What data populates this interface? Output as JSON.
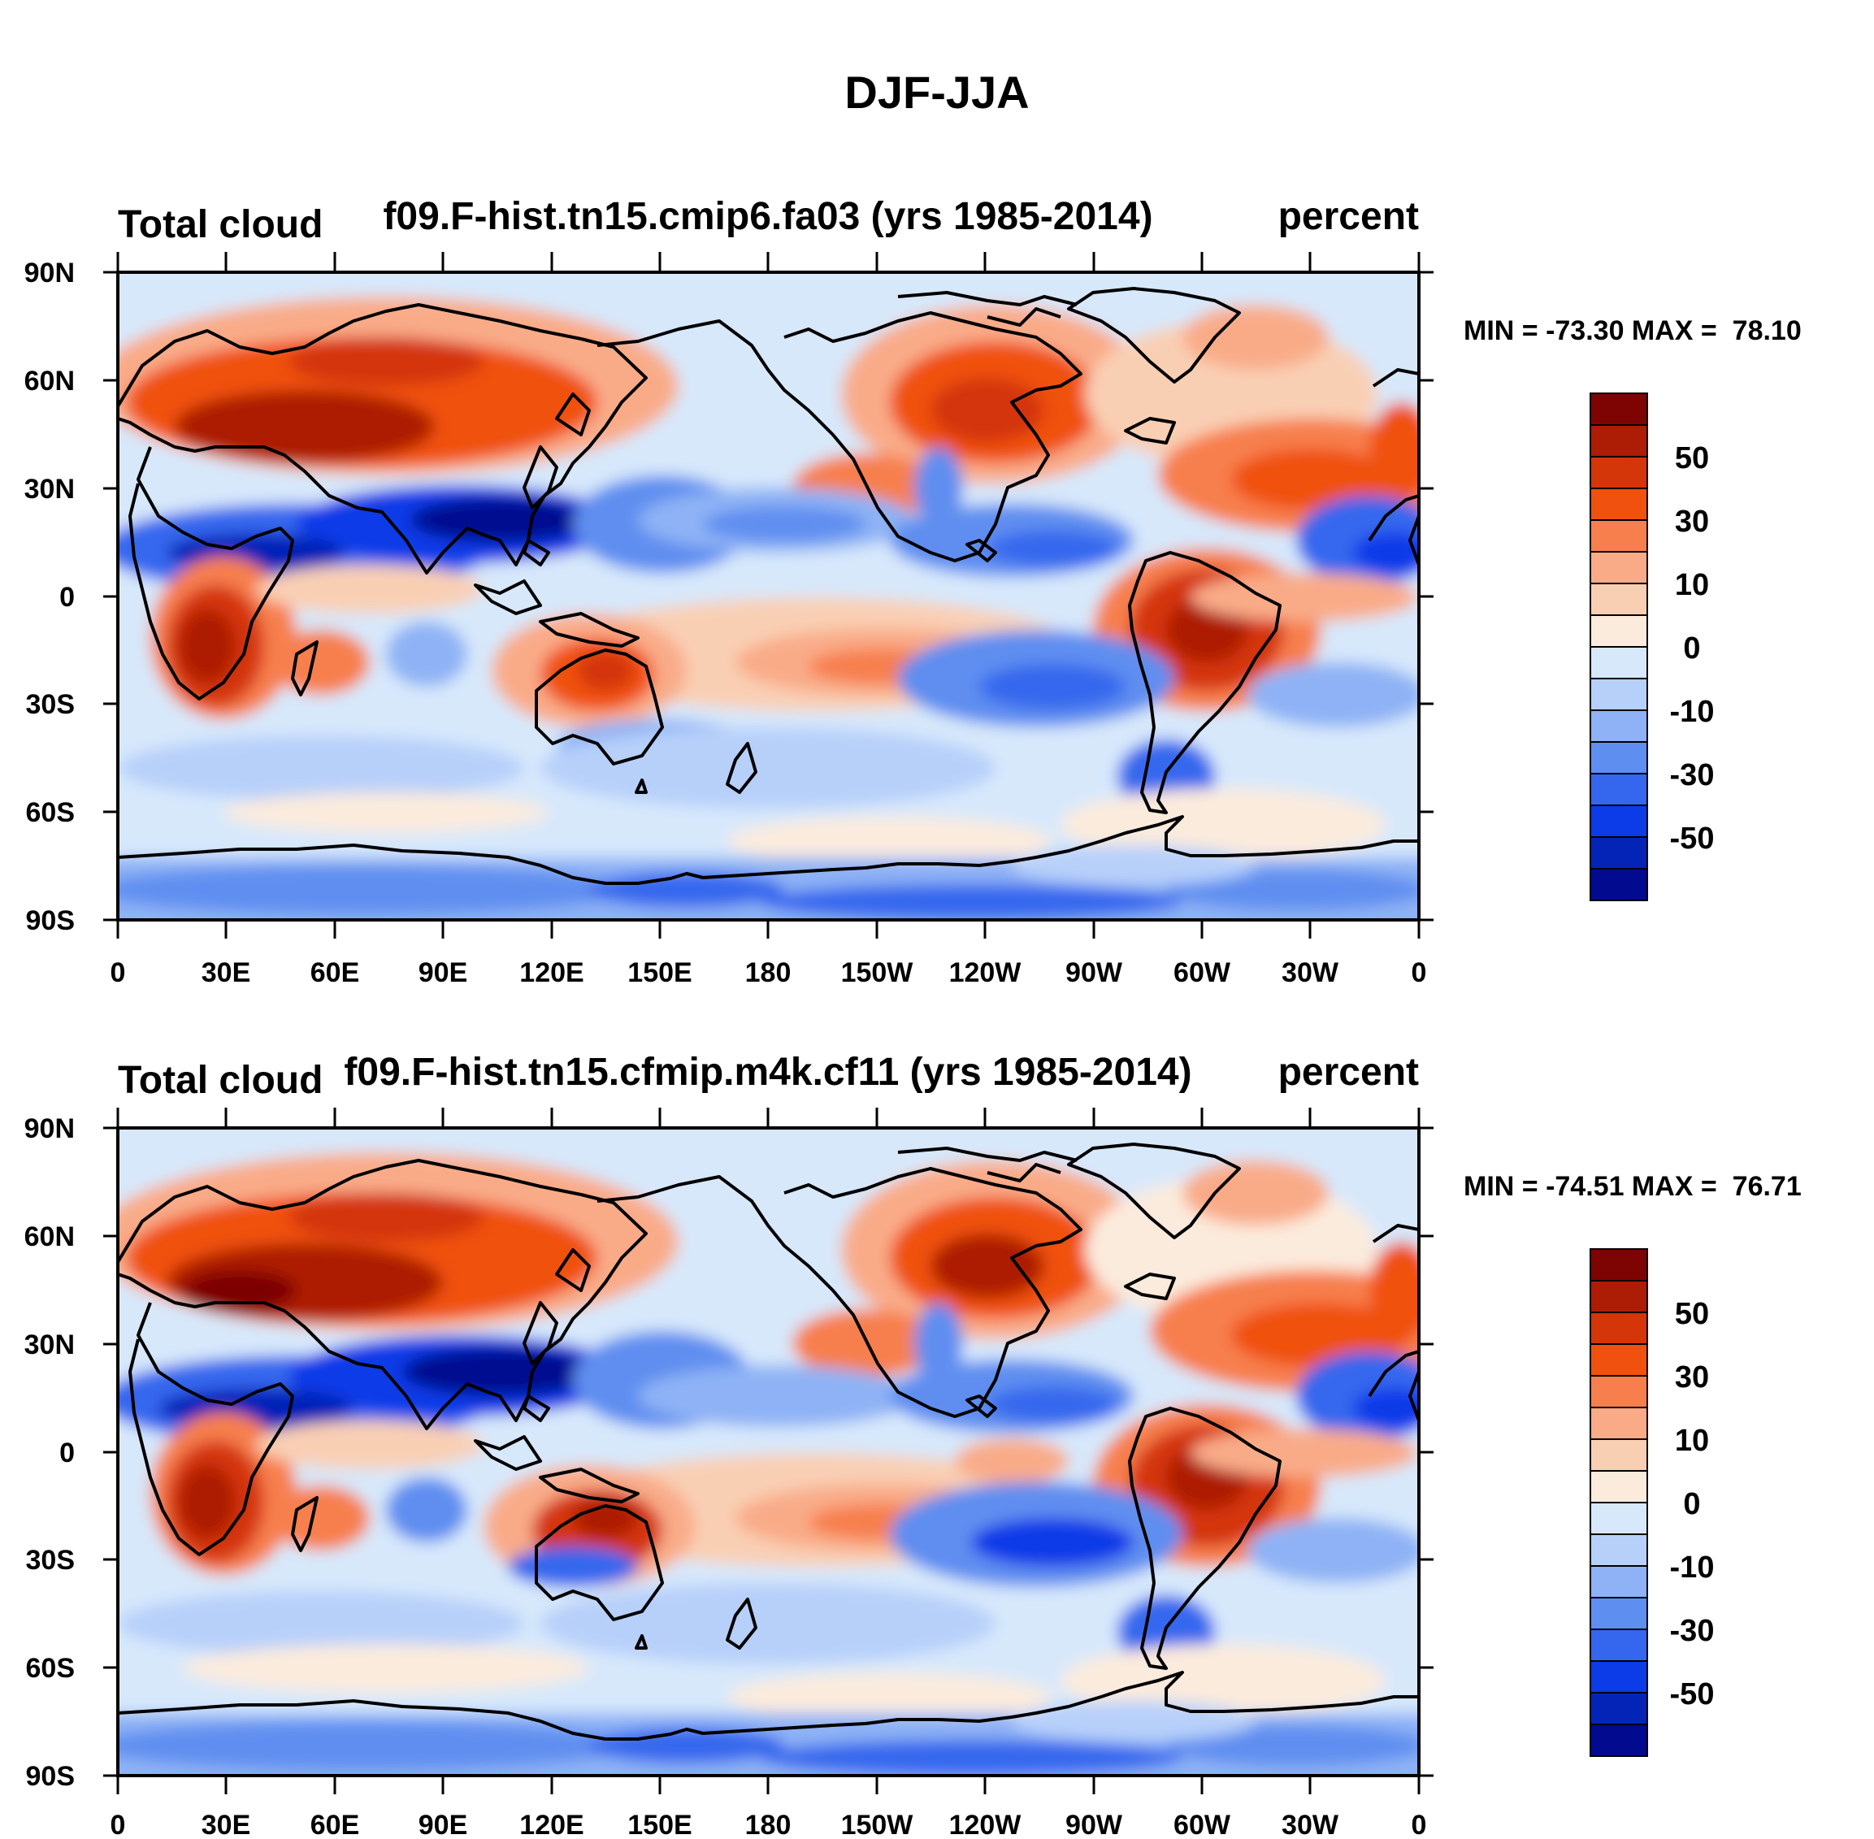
{
  "figure": {
    "title": "DJF-JJA"
  },
  "colorbar": {
    "colors": [
      "#7d0403",
      "#ad1c05",
      "#d43509",
      "#f0510f",
      "#f77f4e",
      "#f9ab88",
      "#f9cfb4",
      "#fbebdd",
      "#d7e8fb",
      "#b7d0fa",
      "#8eb2f5",
      "#5e8ef0",
      "#3467ee",
      "#0c3be8",
      "#0424b8",
      "#020a90"
    ],
    "labels": [
      "50",
      "30",
      "10",
      "0",
      "-10",
      "-30",
      "-50"
    ]
  },
  "axes": {
    "lat_labels": [
      "90N",
      "60N",
      "30N",
      "0",
      "30S",
      "60S",
      "90S"
    ],
    "lon_labels": [
      "0",
      "30E",
      "60E",
      "90E",
      "120E",
      "150E",
      "180",
      "150W",
      "120W",
      "90W",
      "60W",
      "30W",
      "0"
    ]
  },
  "panels": [
    {
      "left_label": "Total cloud",
      "center_label": "f09.F-hist.tn15.cmip6.fa03 (yrs 1985-2014)",
      "right_label": "percent",
      "minmax": "MIN = -73.30 MAX =  78.10"
    },
    {
      "left_label": "Total cloud",
      "center_label": "f09.F-hist.tn15.cfmip.m4k.cf11 (yrs 1985-2014)",
      "right_label": "percent",
      "minmax": "MIN = -74.51 MAX =  76.71"
    }
  ]
}
